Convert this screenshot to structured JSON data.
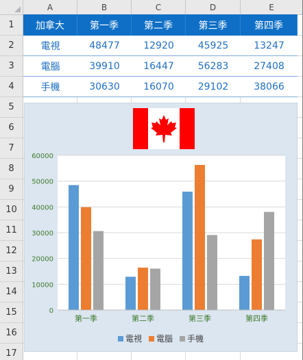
{
  "columns": [
    "A",
    "B",
    "C",
    "D",
    "E"
  ],
  "rows": [
    "1",
    "2",
    "3",
    "4",
    "5",
    "6",
    "7",
    "8",
    "9",
    "10",
    "11",
    "12",
    "13",
    "14",
    "15",
    "16",
    "17"
  ],
  "table": {
    "header": [
      "加拿大",
      "第一季",
      "第二季",
      "第三季",
      "第四季"
    ],
    "rows": [
      [
        "電視",
        "48477",
        "12920",
        "45925",
        "13247"
      ],
      [
        "電腦",
        "39910",
        "16447",
        "56283",
        "27408"
      ],
      [
        "手機",
        "30630",
        "16070",
        "29102",
        "38066"
      ]
    ]
  },
  "colors": {
    "header_bg": "#0f6fc6",
    "data_text": "#1f6fc1",
    "chart_bg": "#dce6f1",
    "series_tv": "#5b9bd5",
    "series_pc": "#ed7d31",
    "series_phone": "#a5a5a5",
    "axis_label": "#3d7a2a"
  },
  "flag_icon": "canada-flag-icon",
  "chart_data": {
    "type": "bar",
    "categories": [
      "第一季",
      "第二季",
      "第三季",
      "第四季"
    ],
    "series": [
      {
        "name": "電視",
        "values": [
          48477,
          12920,
          45925,
          13247
        ]
      },
      {
        "name": "電腦",
        "values": [
          39910,
          16447,
          56283,
          27408
        ]
      },
      {
        "name": "手機",
        "values": [
          30630,
          16070,
          29102,
          38066
        ]
      }
    ],
    "yticks": [
      "0",
      "10000",
      "20000",
      "30000",
      "40000",
      "50000",
      "60000"
    ],
    "ylim": [
      0,
      60000
    ],
    "grid": true,
    "legend": "bottom"
  }
}
